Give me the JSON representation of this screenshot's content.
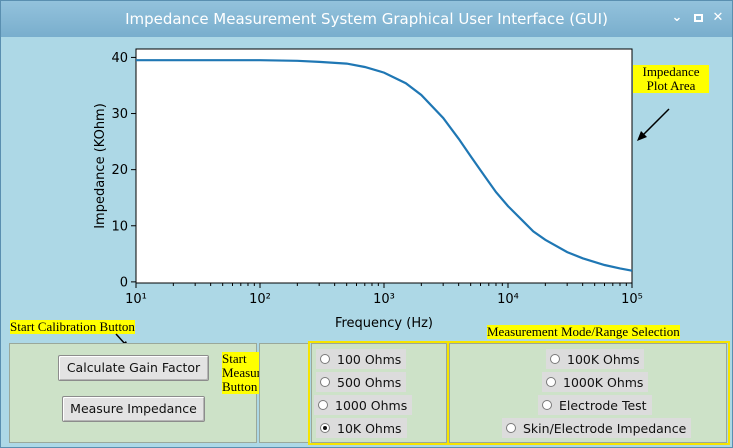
{
  "window": {
    "title": "Impedance Measurement System Graphical User Interface (GUI)",
    "controls": {
      "minimize": "⌄",
      "maximize": "▫",
      "close": "✕"
    }
  },
  "chart_data": {
    "type": "line",
    "xlabel": "Frequency (Hz)",
    "ylabel": "Impedance (KOhm)",
    "xscale": "log",
    "xlim": [
      10,
      100000
    ],
    "ylim": [
      -0.2,
      41.5
    ],
    "x_ticks": [
      "10¹",
      "10²",
      "10³",
      "10⁴",
      "10⁵"
    ],
    "y_ticks": [
      "0",
      "10",
      "20",
      "30",
      "40"
    ],
    "series_color": "#1f77b4",
    "series": [
      {
        "x": [
          10,
          20,
          50,
          100,
          200,
          300,
          500,
          700,
          1000,
          1500,
          2000,
          3000,
          4000,
          5000,
          6000,
          7000,
          8000,
          10000,
          13000,
          16000,
          20000,
          30000,
          40000,
          60000,
          80000,
          100000
        ],
        "y": [
          39.5,
          39.5,
          39.5,
          39.5,
          39.4,
          39.2,
          38.9,
          38.3,
          37.3,
          35.4,
          33.3,
          29.2,
          25.5,
          22.4,
          19.9,
          17.8,
          16.0,
          13.5,
          11.0,
          9.0,
          7.5,
          5.3,
          4.2,
          3.0,
          2.4,
          2.0
        ]
      }
    ]
  },
  "annotations": {
    "plot_area": "Impedance Plot Area",
    "start_calibration": "Start Calibration Button",
    "start_measurement": "Start Measurement Button",
    "mode_selection": "Measurement Mode/Range Selection"
  },
  "buttons": {
    "calculate": "Calculate Gain Factor",
    "measure": "Measure Impedance"
  },
  "radios_left": [
    {
      "label": "100 Ohms",
      "selected": false
    },
    {
      "label": "500 Ohms",
      "selected": false
    },
    {
      "label": "1000 Ohms",
      "selected": false
    },
    {
      "label": "10K Ohms",
      "selected": true
    }
  ],
  "radios_right": [
    {
      "label": "100K Ohms",
      "selected": false
    },
    {
      "label": "1000K Ohms",
      "selected": false
    },
    {
      "label": "Electrode Test",
      "selected": false
    },
    {
      "label": "Skin/Electrode Impedance",
      "selected": false
    }
  ]
}
